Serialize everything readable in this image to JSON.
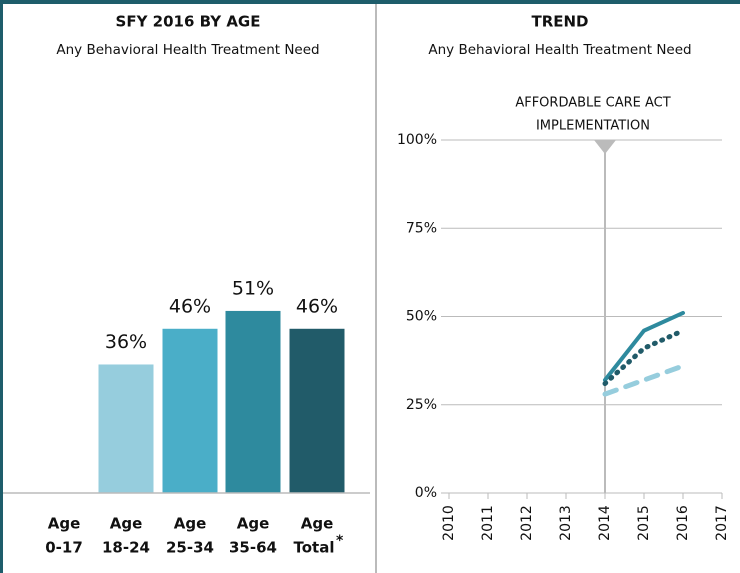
{
  "chart_data": [
    {
      "type": "bar",
      "title": "SFY 2016 BY AGE",
      "subtitle": "Any Behavioral Health Treatment Need",
      "categories": [
        [
          "Age",
          "0-17"
        ],
        [
          "Age",
          "18-24"
        ],
        [
          "Age",
          "25-34"
        ],
        [
          "Age",
          "35-64"
        ],
        [
          "Age",
          "Total"
        ]
      ],
      "footnote_marker": "*",
      "values": [
        null,
        36,
        46,
        51,
        46
      ],
      "value_labels": [
        null,
        "36%",
        "46%",
        "51%",
        "46%"
      ],
      "colors": [
        "#96cddd",
        "#96cddd",
        "#4aaec8",
        "#2e8a9e",
        "#215b69"
      ],
      "ylim": [
        0,
        100
      ]
    },
    {
      "type": "line",
      "title": "TREND",
      "subtitle": "Any Behavioral Health Treatment Need",
      "x": [
        2014,
        2015,
        2016
      ],
      "series": [
        {
          "color": "#2e8a9e",
          "style": "solid",
          "values": [
            32,
            46,
            51
          ]
        },
        {
          "color": "#215b69",
          "style": "dotted",
          "values": [
            31,
            41,
            46
          ]
        },
        {
          "color": "#96cddd",
          "style": "dashed",
          "values": [
            28,
            32,
            36
          ]
        }
      ],
      "xlim": [
        2010,
        2017
      ],
      "xticks": [
        2010,
        2011,
        2012,
        2013,
        2014,
        2015,
        2016,
        2017
      ],
      "ylim": [
        0,
        100
      ],
      "yticks": [
        {
          "value": 0,
          "label": "0%"
        },
        {
          "value": 25,
          "label": "25%"
        },
        {
          "value": 50,
          "label": "50%"
        },
        {
          "value": 75,
          "label": "75%"
        },
        {
          "value": 100,
          "label": "100%"
        }
      ],
      "grid": true,
      "annotation": {
        "x": 2014,
        "text": [
          "AFFORDABLE CARE ACT",
          "IMPLEMENTATION"
        ]
      }
    }
  ]
}
